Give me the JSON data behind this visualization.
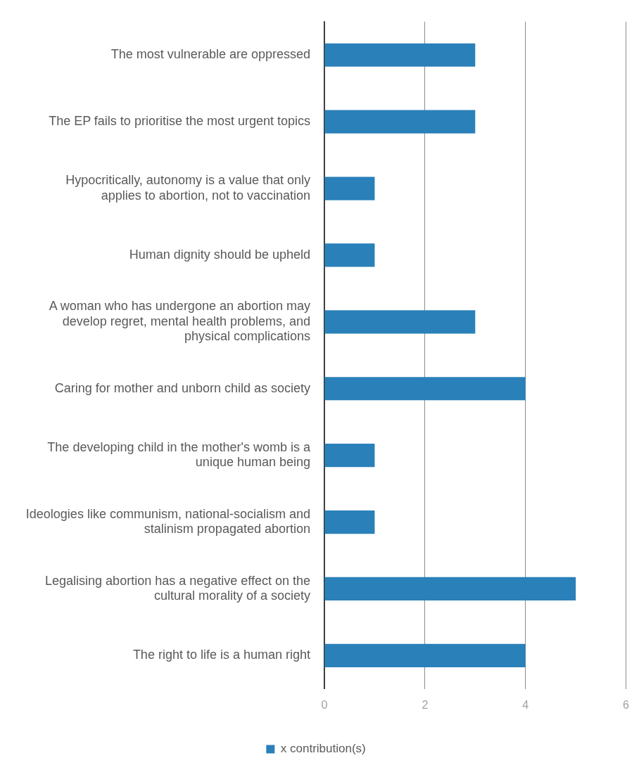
{
  "chart_data": {
    "type": "bar",
    "orientation": "horizontal",
    "categories": [
      "The most vulnerable are oppressed",
      "The EP fails to prioritise the most urgent topics",
      "Hypocritically, autonomy is a value that only applies to abortion, not to vaccination",
      "Human dignity should be upheld",
      "A woman who has undergone an abortion may develop regret, mental health problems, and physical complications",
      "Caring for mother and unborn child as society",
      "The developing child in the mother's womb is a unique human being",
      "Ideologies like communism, national-socialism and stalinism propagated abortion",
      "Legalising abortion has a negative effect on the cultural morality of a society",
      "The right to life is a human right"
    ],
    "series": [
      {
        "name": "x contribution(s)",
        "color": "#2a80b9",
        "values": [
          3,
          3,
          1,
          1,
          3,
          4,
          1,
          1,
          5,
          4
        ]
      }
    ],
    "xlim": [
      0,
      6
    ],
    "xticks": [
      0,
      2,
      4,
      6
    ],
    "grid": "x",
    "legend": "bottom"
  }
}
